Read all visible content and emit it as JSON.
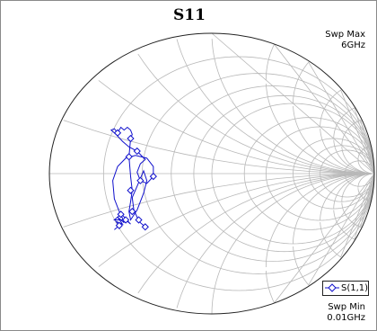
{
  "chart_data": {
    "type": "smith",
    "title": "S11",
    "sweep": {
      "max_label": "Swp Max",
      "max_value": "6GHz",
      "min_label": "Swp Min",
      "min_value": "0.01GHz"
    },
    "grid": true,
    "resistance_circles": [
      0.2,
      0.4,
      0.6,
      0.8,
      1.0,
      1.5,
      2.0,
      3.0,
      4.0,
      5.0,
      10.0
    ],
    "reactance_arcs": [
      0.2,
      0.4,
      0.6,
      0.8,
      1.0,
      1.5,
      2.0,
      3.0,
      4.0,
      5.0,
      10.0
    ],
    "legend_position": "bottom-right",
    "series": [
      {
        "name": "S(1,1)",
        "color": "#1010cc",
        "marker": "diamond",
        "gamma": [
          [
            -0.6,
            -0.4
          ],
          [
            -0.57,
            -0.37
          ],
          [
            -0.59,
            -0.34
          ],
          [
            -0.55,
            -0.36
          ],
          [
            -0.58,
            -0.31
          ],
          [
            -0.54,
            -0.35
          ],
          [
            -0.56,
            -0.29
          ],
          [
            -0.6,
            -0.33
          ],
          [
            -0.53,
            -0.33
          ],
          [
            -0.5,
            -0.36
          ],
          [
            -0.57,
            -0.27
          ],
          [
            -0.6,
            -0.18
          ],
          [
            -0.61,
            -0.05
          ],
          [
            -0.58,
            0.05
          ],
          [
            -0.53,
            0.11
          ],
          [
            -0.47,
            0.13
          ],
          [
            -0.4,
            0.11
          ],
          [
            -0.36,
            0.05
          ],
          [
            -0.36,
            -0.02
          ],
          [
            -0.4,
            -0.07
          ],
          [
            -0.44,
            -0.05
          ],
          [
            -0.46,
            0.01
          ],
          [
            -0.44,
            0.07
          ],
          [
            -0.41,
            0.1
          ],
          [
            -0.46,
            0.16
          ],
          [
            -0.51,
            0.19
          ],
          [
            -0.55,
            0.23
          ],
          [
            -0.59,
            0.28
          ],
          [
            -0.62,
            0.31
          ],
          [
            -0.6,
            0.32
          ],
          [
            -0.58,
            0.29
          ],
          [
            -0.56,
            0.33
          ],
          [
            -0.54,
            0.31
          ],
          [
            -0.52,
            0.33
          ],
          [
            -0.5,
            0.31
          ],
          [
            -0.49,
            0.28
          ],
          [
            -0.5,
            0.25
          ],
          [
            -0.51,
            0.12
          ],
          [
            -0.5,
            -0.02
          ],
          [
            -0.49,
            -0.12
          ],
          [
            -0.5,
            -0.2
          ],
          [
            -0.51,
            -0.27
          ],
          [
            -0.5,
            -0.33
          ],
          [
            -0.46,
            -0.26
          ],
          [
            -0.42,
            -0.14
          ],
          [
            -0.4,
            -0.05
          ],
          [
            -0.42,
            0.02
          ],
          [
            -0.46,
            -0.09
          ],
          [
            -0.49,
            -0.17
          ],
          [
            -0.48,
            -0.26
          ],
          [
            -0.46,
            -0.31
          ],
          [
            -0.44,
            -0.35
          ],
          [
            -0.41,
            -0.38
          ]
        ],
        "markers": [
          [
            -0.41,
            -0.38
          ],
          [
            -0.45,
            -0.33
          ],
          [
            -0.49,
            -0.27
          ],
          [
            -0.5,
            -0.12
          ],
          [
            -0.53,
            -0.33
          ],
          [
            -0.56,
            -0.29
          ],
          [
            -0.57,
            -0.37
          ],
          [
            -0.44,
            -0.05
          ],
          [
            -0.36,
            -0.02
          ],
          [
            -0.51,
            0.12
          ],
          [
            -0.5,
            0.25
          ],
          [
            -0.58,
            0.29
          ],
          [
            -0.46,
            0.16
          ]
        ]
      }
    ]
  }
}
